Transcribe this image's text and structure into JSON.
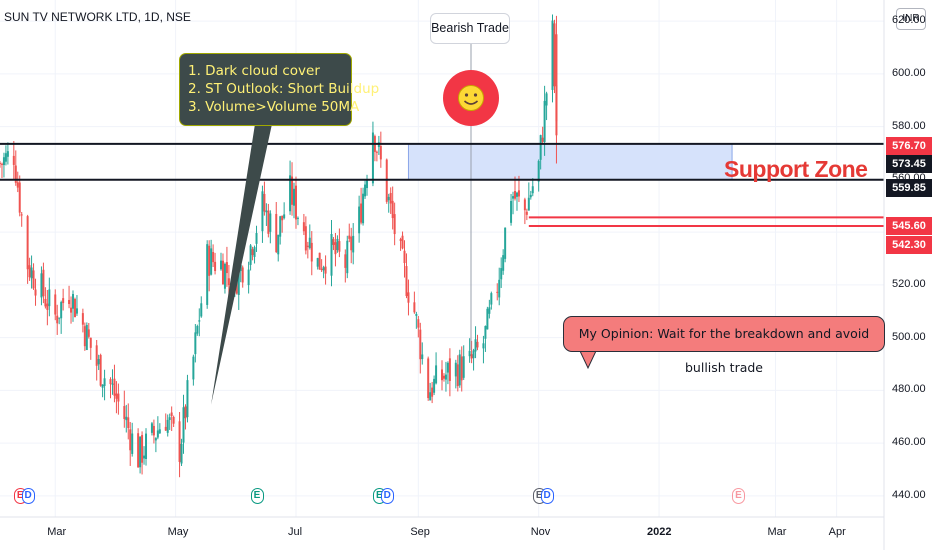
{
  "header": {
    "title": "SUN TV NETWORK LTD, 1D, NSE",
    "currency": "INR"
  },
  "annotations": {
    "outlook_lines": [
      "1. Dark cloud cover",
      "2. ST Outlook: Short Buildup",
      "3. Volume>Volume 50MA"
    ],
    "opinion": "My Opinion: Wait for the breakdown and avoid bullish trade",
    "bearish_label": "Bearish Trade",
    "zone_label": "Support Zone"
  },
  "price_levels": {
    "current": "576.70",
    "zone_top": "573.45",
    "zone_bottom": "559.85",
    "stop_high": "545.60",
    "stop_low": "542.30"
  },
  "colors": {
    "up": "#26a69a",
    "down": "#ef5350",
    "zone": "#d6e2fb",
    "level_red": "#f23645",
    "level_black": "#131722",
    "note_bg": "#3d4a4a",
    "note_text": "#fff176"
  },
  "events": [
    {
      "letter": "E",
      "date": "2021-02-11",
      "color": "#f23645"
    },
    {
      "letter": "D",
      "date": "2021-02-15",
      "color": "#2962ff"
    },
    {
      "letter": "E",
      "date": "2021-06-11",
      "color": "#089981"
    },
    {
      "letter": "E",
      "date": "2021-08-12",
      "color": "#089981"
    },
    {
      "letter": "D",
      "date": "2021-08-16",
      "color": "#2962ff"
    },
    {
      "letter": "E",
      "date": "2021-11-01",
      "color": "#5d606b"
    },
    {
      "letter": "D",
      "date": "2021-11-05",
      "color": "#2962ff"
    },
    {
      "letter": "E",
      "date": "2022-02-10",
      "color": "#f23645"
    }
  ],
  "chart_data": {
    "type": "candlestick",
    "title": "SUN TV NETWORK LTD, 1D, NSE",
    "ylabel": "INR",
    "y_ticks": [
      440,
      460,
      480,
      500,
      520,
      540,
      560,
      580,
      600,
      620
    ],
    "x_ticks": [
      "Mar",
      "May",
      "Jul",
      "Sep",
      "Nov",
      "2022",
      "Mar",
      "Apr"
    ],
    "ylim": [
      432,
      628
    ],
    "xlim": [
      "2021-02-01",
      "2022-04-25"
    ],
    "support_zone": {
      "from": "2021-08-27",
      "to": "2022-02-07",
      "top": 573.45,
      "bottom": 559.85
    },
    "horizontal_levels": [
      573.45,
      559.85,
      545.6,
      542.3
    ],
    "close_path": [
      {
        "date": "2021-02-01",
        "value": 566
      },
      {
        "date": "2021-02-08",
        "value": 570
      },
      {
        "date": "2021-02-15",
        "value": 528
      },
      {
        "date": "2021-02-22",
        "value": 518
      },
      {
        "date": "2021-03-01",
        "value": 508
      },
      {
        "date": "2021-03-08",
        "value": 518
      },
      {
        "date": "2021-03-15",
        "value": 505
      },
      {
        "date": "2021-03-22",
        "value": 490
      },
      {
        "date": "2021-03-29",
        "value": 482
      },
      {
        "date": "2021-04-05",
        "value": 470
      },
      {
        "date": "2021-04-12",
        "value": 455
      },
      {
        "date": "2021-04-19",
        "value": 462
      },
      {
        "date": "2021-04-26",
        "value": 470
      },
      {
        "date": "2021-05-03",
        "value": 458
      },
      {
        "date": "2021-05-10",
        "value": 492
      },
      {
        "date": "2021-05-17",
        "value": 530
      },
      {
        "date": "2021-05-24",
        "value": 528
      },
      {
        "date": "2021-05-31",
        "value": 522
      },
      {
        "date": "2021-06-07",
        "value": 532
      },
      {
        "date": "2021-06-14",
        "value": 550
      },
      {
        "date": "2021-06-21",
        "value": 538
      },
      {
        "date": "2021-06-28",
        "value": 555
      },
      {
        "date": "2021-07-05",
        "value": 542
      },
      {
        "date": "2021-07-12",
        "value": 528
      },
      {
        "date": "2021-07-19",
        "value": 533
      },
      {
        "date": "2021-07-26",
        "value": 528
      },
      {
        "date": "2021-08-02",
        "value": 545
      },
      {
        "date": "2021-08-09",
        "value": 580
      },
      {
        "date": "2021-08-16",
        "value": 555
      },
      {
        "date": "2021-08-23",
        "value": 530
      },
      {
        "date": "2021-08-30",
        "value": 510
      },
      {
        "date": "2021-09-06",
        "value": 480
      },
      {
        "date": "2021-09-13",
        "value": 485
      },
      {
        "date": "2021-09-20",
        "value": 488
      },
      {
        "date": "2021-09-27",
        "value": 490
      },
      {
        "date": "2021-10-04",
        "value": 498
      },
      {
        "date": "2021-10-11",
        "value": 520
      },
      {
        "date": "2021-10-18",
        "value": 555
      },
      {
        "date": "2021-10-25",
        "value": 548
      },
      {
        "date": "2021-11-01",
        "value": 565
      },
      {
        "date": "2021-11-08",
        "value": 615
      },
      {
        "date": "2021-11-10",
        "value": 576.7
      }
    ]
  }
}
